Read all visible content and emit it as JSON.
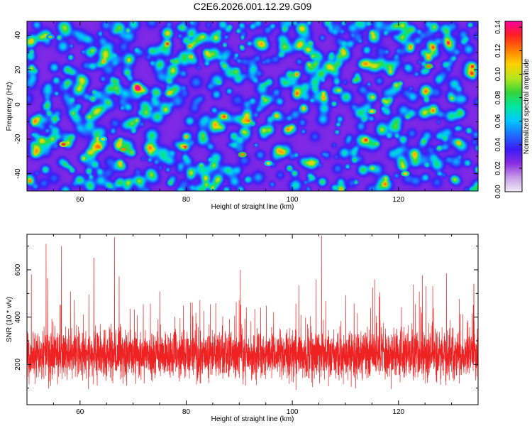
{
  "title": "C2E6.2026.001.12.29.G09",
  "chart_data": [
    {
      "type": "heatmap",
      "xlabel": "Height of straight line (km)",
      "ylabel": "Frequency (Hz)",
      "xlim": [
        50,
        135
      ],
      "ylim": [
        -50,
        48
      ],
      "xticks": [
        60,
        80,
        100,
        120
      ],
      "yticks": [
        -40,
        -20,
        0,
        20,
        40
      ],
      "colorbar": {
        "label": "Normalized spectral amplitude",
        "range": [
          0.0,
          0.145
        ],
        "ticks": [
          "0.00",
          "0.02",
          "0.04",
          "0.06",
          "0.08",
          "0.10",
          "0.12",
          "0.14"
        ],
        "stops": [
          "#f2ecf7",
          "#c79be8",
          "#8a2be2",
          "#3a1cf5",
          "#1f6dff",
          "#00c8ff",
          "#00e6a0",
          "#35d43a",
          "#b6e61e",
          "#ffd000",
          "#ff7a00",
          "#ff2020",
          "#ff00a0"
        ]
      },
      "peaks": [
        {
          "x": 56.9,
          "y": -23,
          "v": 0.13
        },
        {
          "x": 68.2,
          "y": -26,
          "v": 0.12
        },
        {
          "x": 90.6,
          "y": -29,
          "v": 0.12
        },
        {
          "x": 95.5,
          "y": -34,
          "v": 0.1
        },
        {
          "x": 115.0,
          "y": -4,
          "v": 0.11
        },
        {
          "x": 125.7,
          "y": 22,
          "v": 0.12
        },
        {
          "x": 121.3,
          "y": -40,
          "v": 0.11
        },
        {
          "x": 54.4,
          "y": 39,
          "v": 0.09
        },
        {
          "x": 64.3,
          "y": -20,
          "v": 0.1
        }
      ]
    },
    {
      "type": "line",
      "xlabel": "Height of straight line (km)",
      "ylabel": "SNR (10 * v/v)",
      "xlim": [
        50,
        135
      ],
      "ylim": [
        30,
        750
      ],
      "xticks": [
        60,
        80,
        100,
        120
      ],
      "yticks": [
        200,
        400,
        600
      ],
      "color": "#ee2222",
      "series": [
        {
          "name": "SNR",
          "baseline": 240,
          "noise_sigma": 95
        }
      ],
      "spikes": [
        {
          "x": 53.6,
          "v": 710
        },
        {
          "x": 56.5,
          "v": 700
        },
        {
          "x": 62.6,
          "v": 650
        },
        {
          "x": 66.5,
          "v": 738
        },
        {
          "x": 90.2,
          "v": 600
        },
        {
          "x": 105.5,
          "v": 745
        },
        {
          "x": 104.5,
          "v": 560
        },
        {
          "x": 115.5,
          "v": 560
        },
        {
          "x": 134.2,
          "v": 540
        }
      ]
    }
  ]
}
